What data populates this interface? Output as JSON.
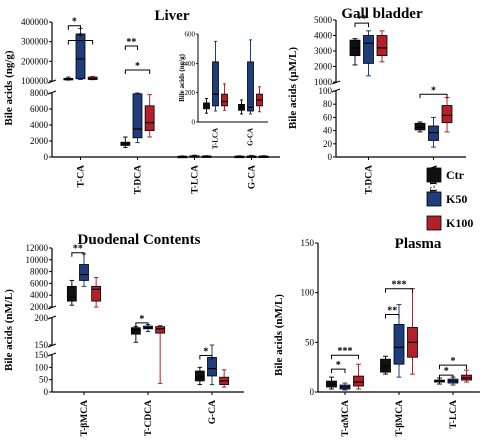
{
  "colors": {
    "Ctr": "#111111",
    "K50": "#1f3d7a",
    "K100": "#b3202a"
  },
  "legend": [
    "Ctr",
    "K50",
    "K100"
  ],
  "chart_data": [
    {
      "id": "liver",
      "type": "boxplot",
      "title": "Liver",
      "ylabel": "Bile acids (ng/g)",
      "categories": [
        "T-CA",
        "T-DCA",
        "T-LCA",
        "G-CA"
      ],
      "segments": [
        [
          0,
          8000
        ],
        [
          80000,
          400000
        ]
      ],
      "yticks_lower": [
        "0",
        "2000",
        "4000",
        "6000",
        "8000"
      ],
      "yticks_upper": [
        "100000",
        "200000",
        "300000",
        "400000"
      ],
      "series": [
        {
          "name": "Ctr",
          "boxes": [
            {
              "min": 85000,
              "q1": 88000,
              "med": 91000,
              "q3": 94000,
              "max": 101000
            },
            {
              "min": 1200,
              "q1": 1450,
              "med": 1600,
              "q3": 1850,
              "max": 2500
            },
            {
              "min": 30,
              "q1": 50,
              "med": 70,
              "q3": 90,
              "max": 130
            },
            {
              "min": 30,
              "q1": 50,
              "med": 70,
              "q3": 100,
              "max": 140
            }
          ]
        },
        {
          "name": "K50",
          "boxes": [
            {
              "min": 88000,
              "q1": 92000,
              "med": 200000,
              "q3": 335000,
              "max": 365000
            },
            {
              "min": 1800,
              "q1": 2400,
              "med": 3500,
              "q3": 7900,
              "max": 8000
            },
            {
              "min": 50,
              "q1": 80,
              "med": 110,
              "q3": 150,
              "max": 230
            },
            {
              "min": 40,
              "q1": 60,
              "med": 80,
              "q3": 120,
              "max": 200
            }
          ]
        },
        {
          "name": "K100",
          "boxes": [
            {
              "min": 87000,
              "q1": 88000,
              "med": 92000,
              "q3": 101000,
              "max": 105000
            },
            {
              "min": 2500,
              "q1": 3300,
              "med": 4300,
              "q3": 6400,
              "max": 7800
            },
            {
              "min": 30,
              "q1": 60,
              "med": 90,
              "q3": 120,
              "max": 170
            },
            {
              "min": 30,
              "q1": 50,
              "med": 70,
              "q3": 110,
              "max": 170
            }
          ]
        }
      ],
      "significance": [
        {
          "cat": 0,
          "from": 0,
          "to": 1,
          "label": "*",
          "y": 380000
        },
        {
          "cat": 0,
          "from": 0,
          "to": 2,
          "label": "*",
          "y": 300000
        },
        {
          "cat": 1,
          "from": 0,
          "to": 1,
          "label": "**",
          "y": 270000
        },
        {
          "cat": 1,
          "from": 0,
          "to": 2,
          "label": "*",
          "y": 140000
        }
      ],
      "inset": {
        "ylabel": "Bile acids (ng/g)",
        "categories": [
          "T-LCA",
          "G-CA"
        ],
        "ylim": [
          0,
          600
        ],
        "yticks": [
          "0",
          "200",
          "400",
          "600"
        ],
        "series": [
          {
            "name": "Ctr",
            "boxes": [
              {
                "min": 60,
                "q1": 90,
                "med": 110,
                "q3": 130,
                "max": 160
              },
              {
                "min": 55,
                "q1": 80,
                "med": 100,
                "q3": 120,
                "max": 150
              }
            ]
          },
          {
            "name": "K50",
            "boxes": [
              {
                "min": 75,
                "q1": 110,
                "med": 190,
                "q3": 410,
                "max": 550
              },
              {
                "min": 55,
                "q1": 75,
                "med": 100,
                "q3": 410,
                "max": 560
              }
            ]
          },
          {
            "name": "K100",
            "boxes": [
              {
                "min": 80,
                "q1": 110,
                "med": 140,
                "q3": 190,
                "max": 260
              },
              {
                "min": 70,
                "q1": 110,
                "med": 150,
                "q3": 190,
                "max": 240
              }
            ]
          }
        ]
      }
    },
    {
      "id": "gallbladder",
      "type": "boxplot",
      "title": "Gall bladder",
      "ylabel": "Bile acids (µM/L)",
      "categories": [
        "T-DCA",
        "T-LCA"
      ],
      "segments": [
        [
          0,
          100
        ],
        [
          1000,
          5000
        ]
      ],
      "yticks_lower": [
        "0",
        "20",
        "40",
        "60",
        "80",
        "100"
      ],
      "yticks_upper": [
        "1000",
        "2000",
        "3000",
        "4000",
        "5000"
      ],
      "series": [
        {
          "name": "Ctr",
          "boxes": [
            {
              "min": 2100,
              "q1": 2700,
              "med": 3200,
              "q3": 3700,
              "max": 3800
            },
            {
              "min": 38,
              "q1": 41,
              "med": 45,
              "q3": 51,
              "max": 53
            }
          ]
        },
        {
          "name": "K50",
          "boxes": [
            {
              "min": 1400,
              "q1": 2200,
              "med": 3500,
              "q3": 4000,
              "max": 4300
            },
            {
              "min": 15,
              "q1": 25,
              "med": 37,
              "q3": 47,
              "max": 60
            }
          ]
        },
        {
          "name": "K100",
          "boxes": [
            {
              "min": 2300,
              "q1": 2700,
              "med": 3200,
              "q3": 4000,
              "max": 4300
            },
            {
              "min": 38,
              "q1": 52,
              "med": 63,
              "q3": 78,
              "max": 90
            }
          ]
        }
      ],
      "significance": [
        {
          "cat": 0,
          "from": 0,
          "to": 1,
          "label": "**",
          "y": 4800
        },
        {
          "cat": 1,
          "from": 0,
          "to": 2,
          "label": "*",
          "y": 95
        }
      ]
    },
    {
      "id": "duodenal",
      "type": "boxplot",
      "title": "Duodenal Contents",
      "ylabel": "Bile acids (nM/L)",
      "categories": [
        "T-βMCA",
        "T-CDCA",
        "G-CA"
      ],
      "segments": [
        [
          0,
          150
        ],
        [
          150,
          200
        ],
        [
          2000,
          12000
        ]
      ],
      "yticks_lower": [
        "0",
        "50",
        "100",
        "150"
      ],
      "yticks_mid": [
        "150",
        "200"
      ],
      "yticks_upper": [
        "2000",
        "4000",
        "6000",
        "8000",
        "10000",
        "12000"
      ],
      "series": [
        {
          "name": "Ctr",
          "boxes": [
            {
              "min": 2300,
              "q1": 3000,
              "med": 3700,
              "q3": 5500,
              "max": 6500
            },
            {
              "min": 155,
              "q1": 170,
              "med": 178,
              "q3": 182,
              "max": 184
            },
            {
              "min": 30,
              "q1": 45,
              "med": 60,
              "q3": 85,
              "max": 100
            }
          ]
        },
        {
          "name": "K50",
          "boxes": [
            {
              "min": 5500,
              "q1": 6500,
              "med": 7500,
              "q3": 9200,
              "max": 11000
            },
            {
              "min": 175,
              "q1": 180,
              "med": 182,
              "q3": 185,
              "max": 188
            },
            {
              "min": 30,
              "q1": 65,
              "med": 95,
              "q3": 140,
              "max": 150
            }
          ]
        },
        {
          "name": "K100",
          "boxes": [
            {
              "min": 2000,
              "q1": 3000,
              "med": 5000,
              "q3": 5500,
              "max": 7000
            },
            {
              "min": 35,
              "q1": 172,
              "med": 180,
              "q3": 184,
              "max": 186
            },
            {
              "min": 20,
              "q1": 30,
              "med": 45,
              "q3": 60,
              "max": 90
            }
          ]
        }
      ],
      "significance": [
        {
          "cat": 0,
          "from": 0,
          "to": 1,
          "label": "**",
          "y": 11200
        },
        {
          "cat": 1,
          "from": 0,
          "to": 1,
          "label": "*",
          "y": 191
        },
        {
          "cat": 2,
          "from": 0,
          "to": 1,
          "label": "*",
          "y": 148
        }
      ]
    },
    {
      "id": "plasma",
      "type": "boxplot",
      "title": "Plasma",
      "ylabel": "Bile acids (nM/L)",
      "categories": [
        "T-αMCA",
        "T-βMCA",
        "T-LCA"
      ],
      "segments": [
        [
          0,
          150
        ]
      ],
      "yticks_lower": [
        "0",
        "50",
        "100",
        "150"
      ],
      "series": [
        {
          "name": "Ctr",
          "boxes": [
            {
              "min": 3,
              "q1": 5,
              "med": 8,
              "q3": 11,
              "max": 15
            },
            {
              "min": 18,
              "q1": 20,
              "med": 26,
              "q3": 33,
              "max": 36
            },
            {
              "min": 8,
              "q1": 10,
              "med": 11,
              "q3": 12,
              "max": 14
            }
          ]
        },
        {
          "name": "K50",
          "boxes": [
            {
              "min": 2,
              "q1": 3,
              "med": 5,
              "q3": 7,
              "max": 9
            },
            {
              "min": 15,
              "q1": 28,
              "med": 45,
              "q3": 68,
              "max": 88
            },
            {
              "min": 7,
              "q1": 9,
              "med": 11,
              "q3": 13,
              "max": 15
            }
          ]
        },
        {
          "name": "K100",
          "boxes": [
            {
              "min": 3,
              "q1": 6,
              "med": 10,
              "q3": 16,
              "max": 28
            },
            {
              "min": 18,
              "q1": 35,
              "med": 50,
              "q3": 65,
              "max": 104
            },
            {
              "min": 10,
              "q1": 12,
              "med": 14,
              "q3": 17,
              "max": 22
            }
          ]
        }
      ],
      "significance": [
        {
          "cat": 0,
          "from": 0,
          "to": 2,
          "label": "***",
          "y": 37
        },
        {
          "cat": 0,
          "from": 0,
          "to": 1,
          "label": "*",
          "y": 23
        },
        {
          "cat": 1,
          "from": 0,
          "to": 2,
          "label": "***",
          "y": 104
        },
        {
          "cat": 1,
          "from": 0,
          "to": 1,
          "label": "**",
          "y": 78
        },
        {
          "cat": 2,
          "from": 0,
          "to": 2,
          "label": "*",
          "y": 27
        },
        {
          "cat": 2,
          "from": 0,
          "to": 1,
          "label": "*",
          "y": 17
        }
      ]
    }
  ]
}
